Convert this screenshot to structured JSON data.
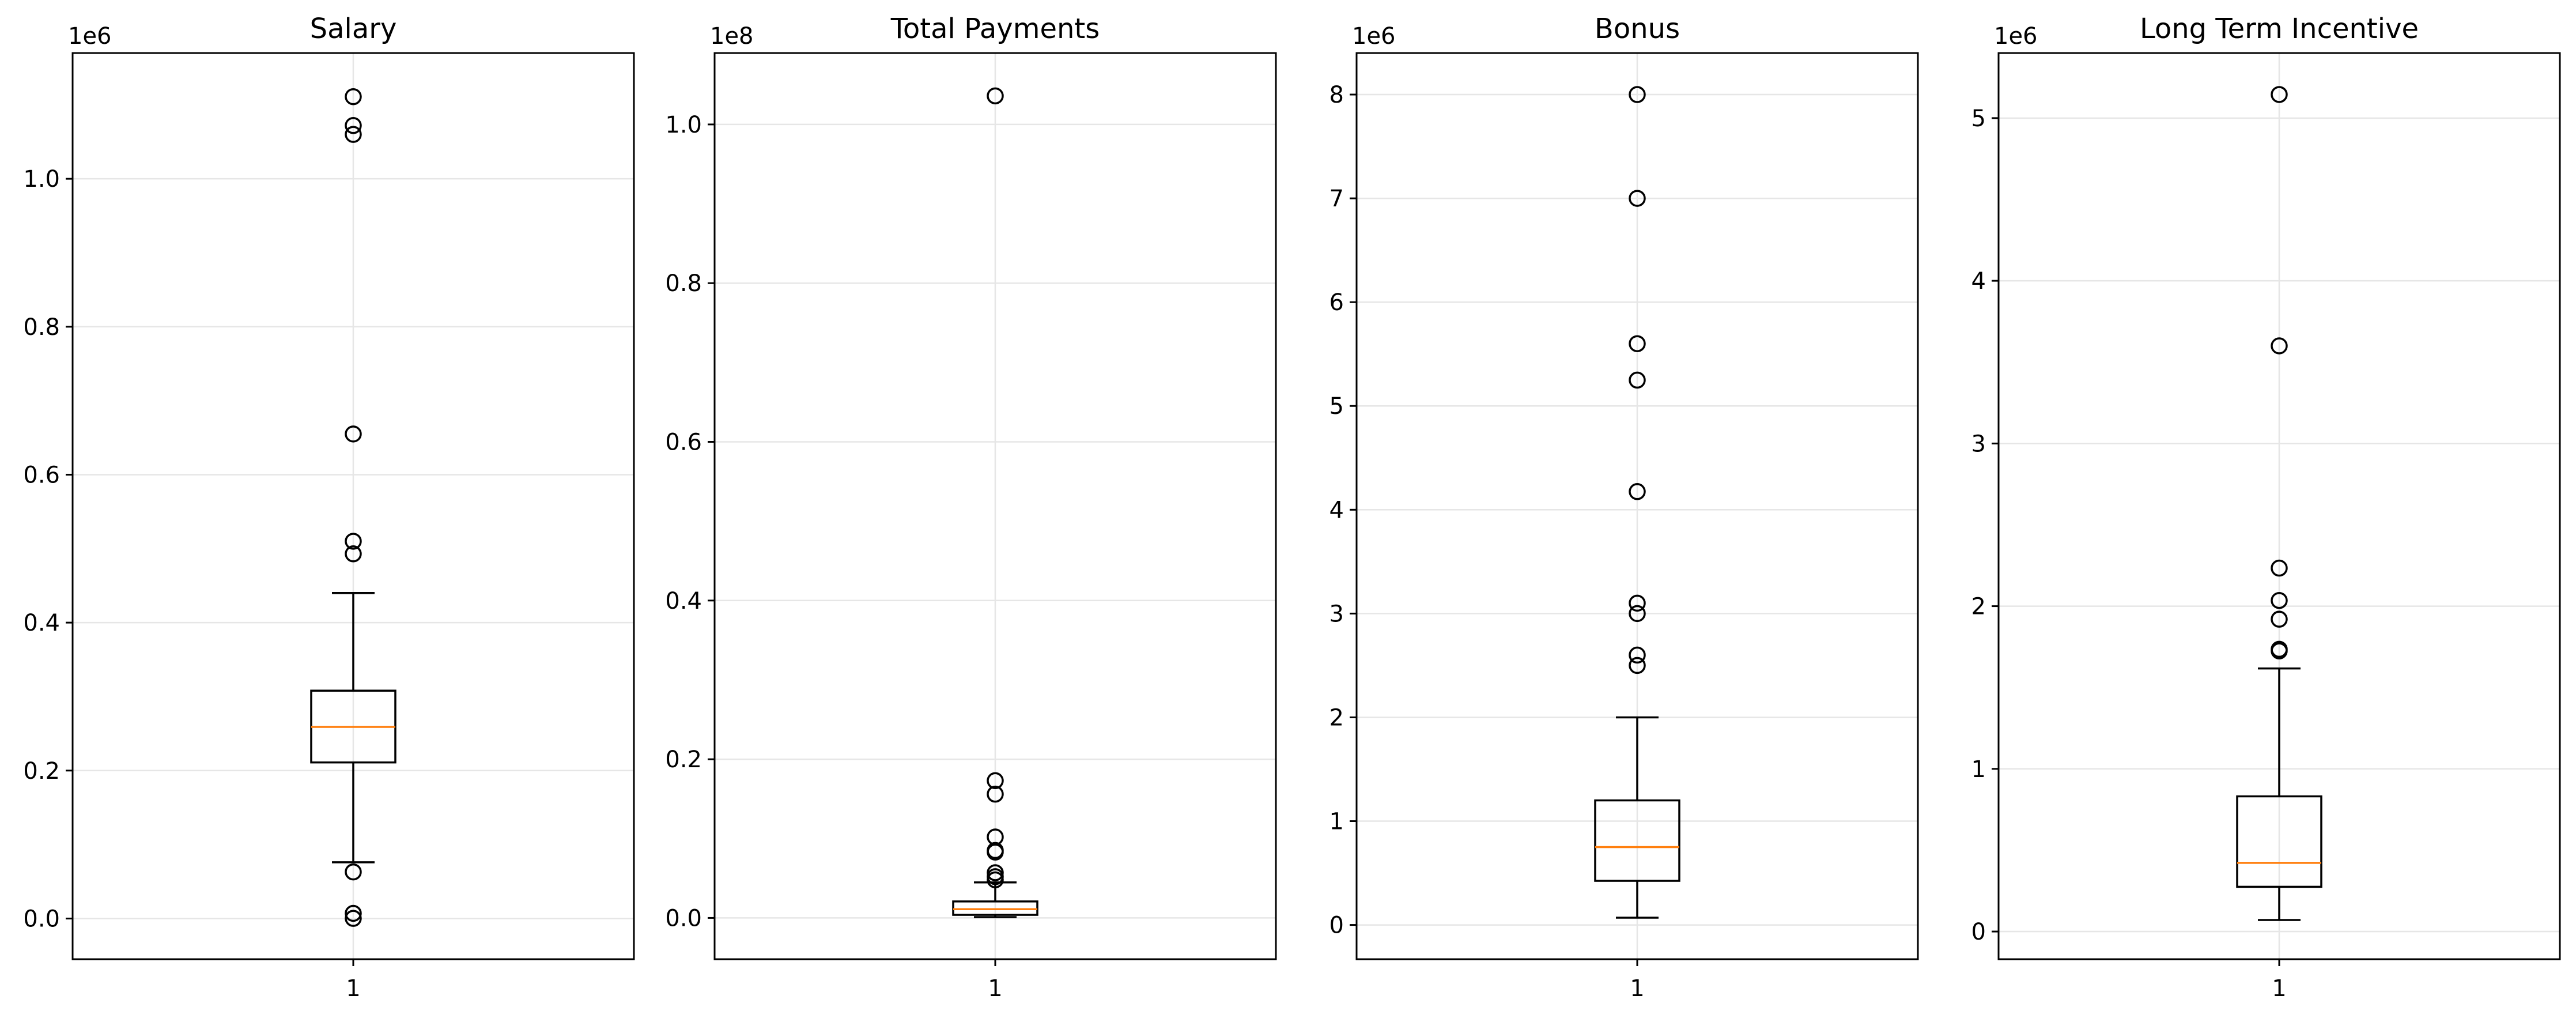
{
  "chart_data": [
    {
      "type": "box",
      "title": "Salary",
      "xlabel": "",
      "ylabel": "",
      "categories": [
        "1"
      ],
      "scale_label": "1e6",
      "ylim": [
        -0.055,
        1.17
      ],
      "yticks": [
        0.0,
        0.2,
        0.4,
        0.6,
        0.8,
        1.0
      ],
      "ytick_labels": [
        "0.0",
        "0.2",
        "0.4",
        "0.6",
        "0.8",
        "1.0"
      ],
      "grid": true,
      "box": {
        "whisker_low": 0.076,
        "q1": 0.211,
        "median": 0.259,
        "q3": 0.308,
        "whisker_high": 0.44
      },
      "outliers": [
        1.111,
        1.072,
        1.06,
        0.655,
        0.51,
        0.493,
        0.063,
        0.007,
        0.0002
      ]
    },
    {
      "type": "box",
      "title": "Total Payments",
      "xlabel": "",
      "ylabel": "",
      "categories": [
        "1"
      ],
      "scale_label": "1e8",
      "ylim": [
        -0.052,
        1.09
      ],
      "yticks": [
        0.0,
        0.2,
        0.4,
        0.6,
        0.8,
        1.0
      ],
      "ytick_labels": [
        "0.0",
        "0.2",
        "0.4",
        "0.6",
        "0.8",
        "1.0"
      ],
      "grid": true,
      "box": {
        "whisker_low": 0.001,
        "q1": 0.0039,
        "median": 0.011,
        "q3": 0.0208,
        "whisker_high": 0.0448
      },
      "outliers": [
        1.036,
        0.173,
        0.156,
        0.102,
        0.085,
        0.083,
        0.057,
        0.052,
        0.048
      ]
    },
    {
      "type": "box",
      "title": "Bonus",
      "xlabel": "",
      "ylabel": "",
      "categories": [
        "1"
      ],
      "scale_label": "1e6",
      "ylim": [
        -0.33,
        8.4
      ],
      "yticks": [
        0,
        1,
        2,
        3,
        4,
        5,
        6,
        7,
        8
      ],
      "ytick_labels": [
        "0",
        "1",
        "2",
        "3",
        "4",
        "5",
        "6",
        "7",
        "8"
      ],
      "grid": true,
      "box": {
        "whisker_low": 0.07,
        "q1": 0.425,
        "median": 0.75,
        "q3": 1.2,
        "whisker_high": 2.0
      },
      "outliers": [
        8.0,
        7.0,
        5.6,
        5.249,
        4.175,
        3.1,
        3.0,
        2.6,
        2.5
      ]
    },
    {
      "type": "box",
      "title": "Long Term Incentive",
      "xlabel": "",
      "ylabel": "",
      "categories": [
        "1"
      ],
      "scale_label": "1e6",
      "ylim": [
        -0.17,
        5.4
      ],
      "yticks": [
        0,
        1,
        2,
        3,
        4,
        5
      ],
      "ytick_labels": [
        "0",
        "1",
        "2",
        "3",
        "4",
        "5"
      ],
      "grid": true,
      "box": {
        "whisker_low": 0.071,
        "q1": 0.275,
        "median": 0.422,
        "q3": 0.831,
        "whisker_high": 1.617
      },
      "outliers": [
        5.145,
        3.6,
        2.234,
        2.035,
        1.92,
        1.735,
        1.725
      ]
    }
  ],
  "colors": {
    "axes": "#000000",
    "grid": "#e6e6e6",
    "median": "#ff7f0e",
    "box": "#000000",
    "outlier_edge": "#000000"
  }
}
